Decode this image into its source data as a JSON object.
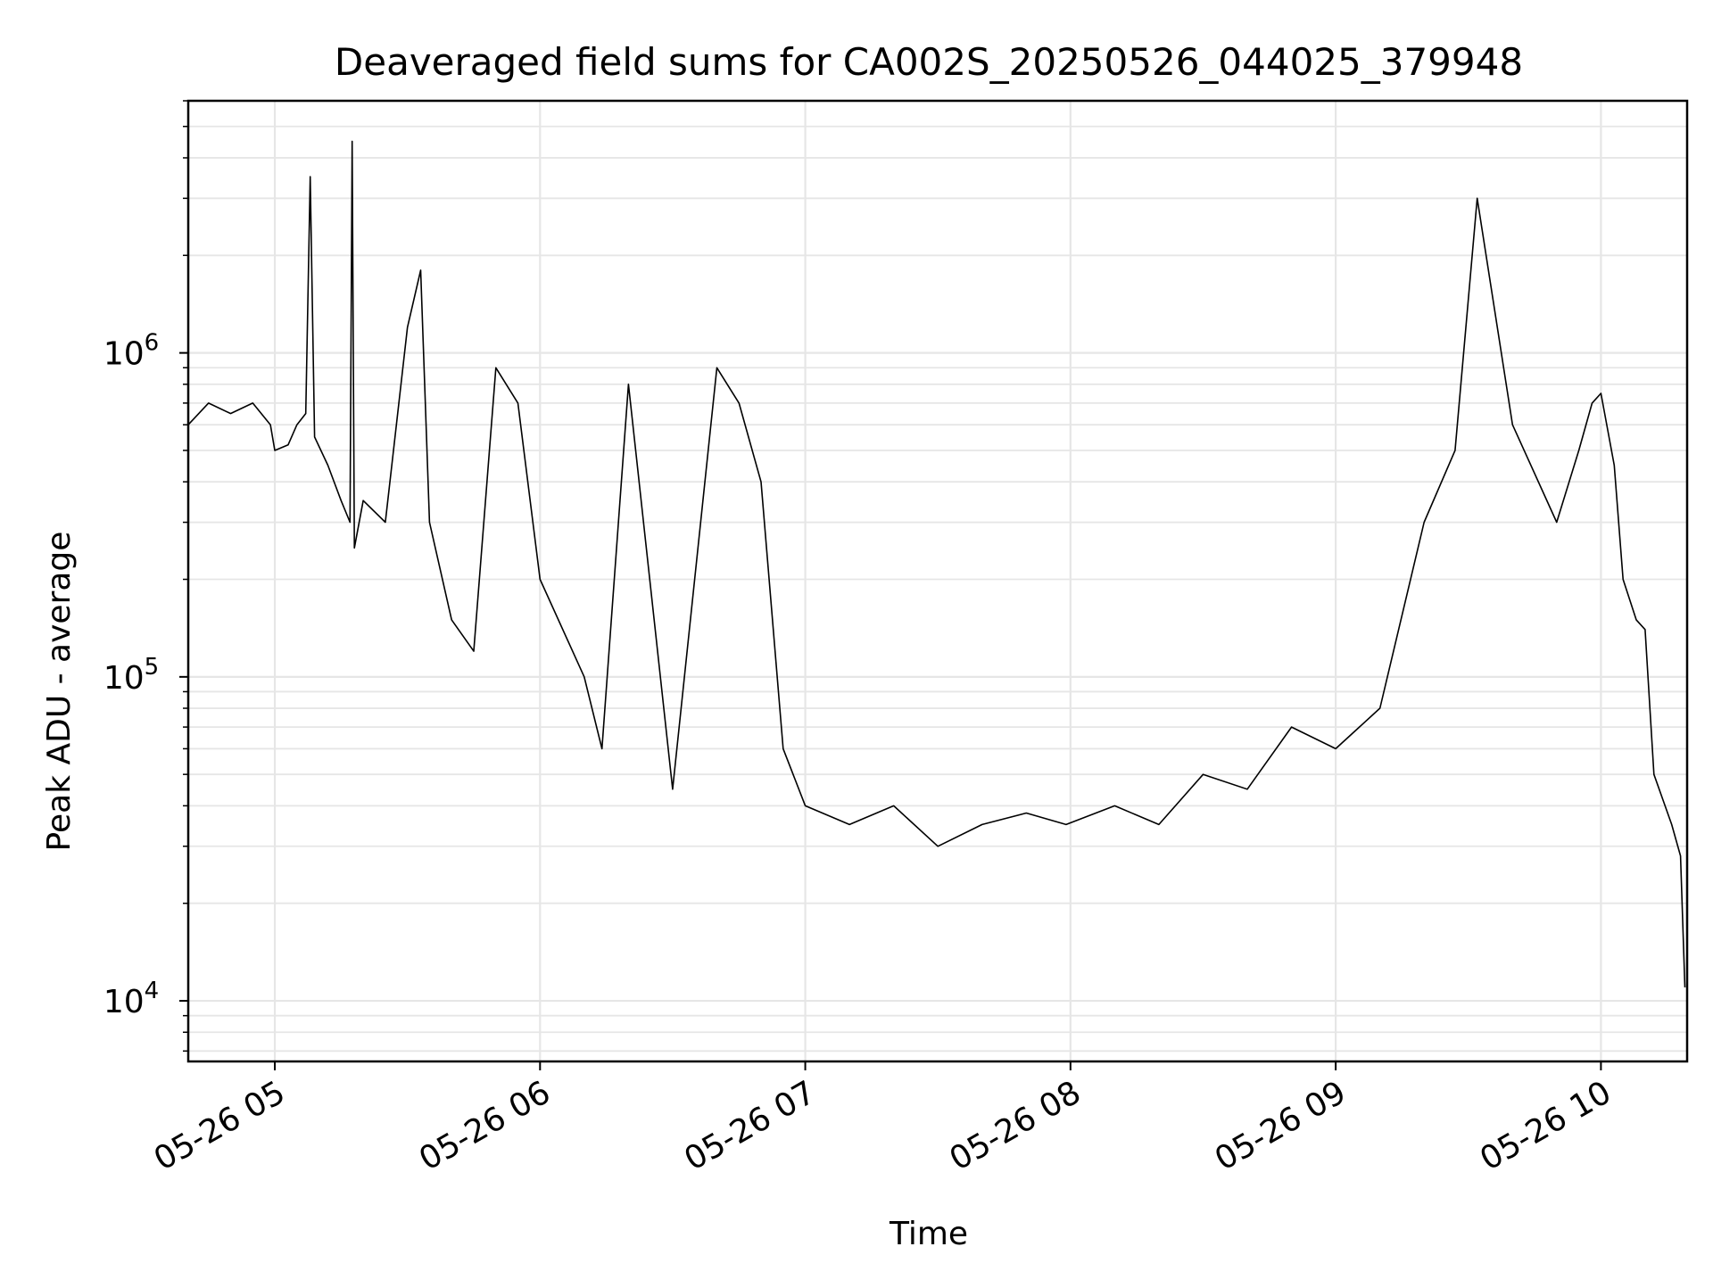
{
  "chart_data": {
    "type": "line",
    "title": "Deaveraged field sums for CA002S_20250526_044025_379948",
    "xlabel": "Time",
    "ylabel": "Peak ADU - average",
    "y_scale": "log",
    "xlim": [
      "2025-05-26T04:40:25",
      "2025-05-26T10:19:30"
    ],
    "ylim": [
      6500,
      6000000
    ],
    "x_ticks": [
      {
        "time": "2025-05-26T05:00",
        "label": "05-26 05"
      },
      {
        "time": "2025-05-26T06:00",
        "label": "05-26 06"
      },
      {
        "time": "2025-05-26T07:00",
        "label": "05-26 07"
      },
      {
        "time": "2025-05-26T08:00",
        "label": "05-26 08"
      },
      {
        "time": "2025-05-26T09:00",
        "label": "05-26 09"
      },
      {
        "time": "2025-05-26T10:00",
        "label": "05-26 10"
      }
    ],
    "y_ticks": [
      {
        "value": 10000,
        "base": "10",
        "exp": "4"
      },
      {
        "value": 100000,
        "base": "10",
        "exp": "5"
      },
      {
        "value": 1000000,
        "base": "10",
        "exp": "6"
      }
    ],
    "grid": true,
    "line_color": "#000000",
    "series": [
      {
        "x": [
          "2025-05-26T04:40:25",
          "2025-05-26T04:45",
          "2025-05-26T04:50",
          "2025-05-26T04:55",
          "2025-05-26T04:59",
          "2025-05-26T05:00",
          "2025-05-26T05:03",
          "2025-05-26T05:05",
          "2025-05-26T05:07",
          "2025-05-26T05:08",
          "2025-05-26T05:09",
          "2025-05-26T05:12",
          "2025-05-26T05:15",
          "2025-05-26T05:17",
          "2025-05-26T05:17:30",
          "2025-05-26T05:18",
          "2025-05-26T05:20",
          "2025-05-26T05:25",
          "2025-05-26T05:30",
          "2025-05-26T05:33",
          "2025-05-26T05:35",
          "2025-05-26T05:40",
          "2025-05-26T05:45",
          "2025-05-26T05:50",
          "2025-05-26T05:55",
          "2025-05-26T06:00",
          "2025-05-26T06:10",
          "2025-05-26T06:14",
          "2025-05-26T06:20",
          "2025-05-26T06:30",
          "2025-05-26T06:40",
          "2025-05-26T06:45",
          "2025-05-26T06:50",
          "2025-05-26T06:55",
          "2025-05-26T07:00",
          "2025-05-26T07:10",
          "2025-05-26T07:20",
          "2025-05-26T07:30",
          "2025-05-26T07:40",
          "2025-05-26T07:50",
          "2025-05-26T07:59",
          "2025-05-26T08:10",
          "2025-05-26T08:20",
          "2025-05-26T08:30",
          "2025-05-26T08:40",
          "2025-05-26T08:50",
          "2025-05-26T09:00",
          "2025-05-26T09:10",
          "2025-05-26T09:20",
          "2025-05-26T09:27",
          "2025-05-26T09:32",
          "2025-05-26T09:40",
          "2025-05-26T09:50",
          "2025-05-26T09:55",
          "2025-05-26T09:58",
          "2025-05-26T10:00",
          "2025-05-26T10:03",
          "2025-05-26T10:05",
          "2025-05-26T10:08",
          "2025-05-26T10:10",
          "2025-05-26T10:12",
          "2025-05-26T10:16",
          "2025-05-26T10:18",
          "2025-05-26T10:19"
        ],
        "values": [
          600000,
          700000,
          650000,
          700000,
          600000,
          500000,
          520000,
          600000,
          650000,
          3500000,
          550000,
          450000,
          350000,
          300000,
          4500000,
          250000,
          350000,
          300000,
          1200000,
          1800000,
          300000,
          150000,
          120000,
          900000,
          700000,
          200000,
          100000,
          60000,
          800000,
          45000,
          900000,
          700000,
          400000,
          60000,
          40000,
          35000,
          40000,
          30000,
          35000,
          38000,
          35000,
          40000,
          35000,
          50000,
          45000,
          70000,
          60000,
          80000,
          300000,
          500000,
          3000000,
          600000,
          300000,
          500000,
          700000,
          750000,
          450000,
          200000,
          150000,
          140000,
          50000,
          35000,
          28000,
          11000
        ]
      }
    ]
  }
}
